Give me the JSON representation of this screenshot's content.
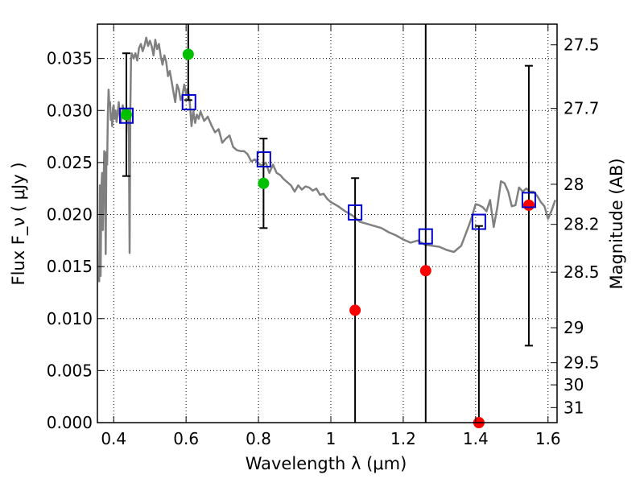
{
  "chart_data": {
    "type": "scatter",
    "xlabel": "Wavelength  λ (μm)",
    "ylabel": "Flux  F_ν  ( μJy )",
    "y2label": "Magnitude (AB)",
    "xlim": [
      0.355,
      1.625
    ],
    "ylim": [
      0.0,
      0.0383
    ],
    "grid": true,
    "x_ticks": [
      {
        "value": 0.4,
        "label": "0.4"
      },
      {
        "value": 0.6,
        "label": "0.6"
      },
      {
        "value": 0.8,
        "label": "0.8"
      },
      {
        "value": 1.0,
        "label": "1"
      },
      {
        "value": 1.2,
        "label": "1.2"
      },
      {
        "value": 1.4,
        "label": "1.4"
      },
      {
        "value": 1.6,
        "label": "1.6"
      }
    ],
    "y_ticks": [
      {
        "value": 0.0,
        "label": "0.000"
      },
      {
        "value": 0.005,
        "label": "0.005"
      },
      {
        "value": 0.01,
        "label": "0.010"
      },
      {
        "value": 0.015,
        "label": "0.015"
      },
      {
        "value": 0.02,
        "label": "0.020"
      },
      {
        "value": 0.025,
        "label": "0.025"
      },
      {
        "value": 0.03,
        "label": "0.030"
      },
      {
        "value": 0.035,
        "label": "0.035"
      }
    ],
    "mag_ticks": [
      {
        "value": 27.5,
        "label": "27.5"
      },
      {
        "value": 27.7,
        "label": "27.7"
      },
      {
        "value": 28.0,
        "label": "28"
      },
      {
        "value": 28.2,
        "label": "28.2"
      },
      {
        "value": 28.5,
        "label": "28.5"
      },
      {
        "value": 29.0,
        "label": "29"
      },
      {
        "value": 29.5,
        "label": "29.5"
      },
      {
        "value": 30.0,
        "label": "30"
      },
      {
        "value": 31.0,
        "label": "31"
      }
    ],
    "colors": {
      "model": "#808080",
      "green": "#00c000",
      "red": "#ff0000",
      "square": "#0000cc",
      "errorbar": "#000000"
    },
    "model_spectrum": {
      "x": [
        0.36,
        0.362,
        0.364,
        0.366,
        0.368,
        0.37,
        0.372,
        0.374,
        0.376,
        0.378,
        0.38,
        0.382,
        0.384,
        0.386,
        0.388,
        0.39,
        0.392,
        0.394,
        0.396,
        0.398,
        0.4,
        0.402,
        0.405,
        0.408,
        0.411,
        0.414,
        0.417,
        0.42,
        0.425,
        0.43,
        0.435,
        0.44,
        0.442,
        0.444,
        0.446,
        0.448,
        0.45,
        0.455,
        0.46,
        0.465,
        0.47,
        0.475,
        0.48,
        0.485,
        0.49,
        0.495,
        0.5,
        0.505,
        0.51,
        0.515,
        0.52,
        0.525,
        0.53,
        0.535,
        0.54,
        0.545,
        0.55,
        0.555,
        0.56,
        0.565,
        0.57,
        0.575,
        0.58,
        0.585,
        0.59,
        0.595,
        0.6,
        0.605,
        0.61,
        0.615,
        0.62,
        0.625,
        0.63,
        0.635,
        0.64,
        0.65,
        0.66,
        0.67,
        0.68,
        0.69,
        0.7,
        0.71,
        0.72,
        0.73,
        0.74,
        0.75,
        0.76,
        0.77,
        0.78,
        0.79,
        0.8,
        0.81,
        0.82,
        0.83,
        0.84,
        0.85,
        0.86,
        0.87,
        0.88,
        0.89,
        0.9,
        0.91,
        0.92,
        0.93,
        0.94,
        0.95,
        0.96,
        0.97,
        0.98,
        0.99,
        1.0,
        1.02,
        1.04,
        1.06,
        1.08,
        1.1,
        1.12,
        1.14,
        1.16,
        1.18,
        1.2,
        1.22,
        1.24,
        1.26,
        1.28,
        1.3,
        1.32,
        1.34,
        1.36,
        1.38,
        1.39,
        1.4,
        1.41,
        1.42,
        1.43,
        1.44,
        1.45,
        1.46,
        1.47,
        1.48,
        1.49,
        1.5,
        1.51,
        1.52,
        1.53,
        1.54,
        1.55,
        1.56,
        1.57,
        1.58,
        1.59,
        1.6,
        1.61,
        1.62
      ],
      "y": [
        0.0135,
        0.0228,
        0.0141,
        0.0225,
        0.024,
        0.0185,
        0.0223,
        0.0261,
        0.0252,
        0.0162,
        0.026,
        0.0248,
        0.0297,
        0.032,
        0.0305,
        0.0308,
        0.0291,
        0.0297,
        0.0285,
        0.0302,
        0.0305,
        0.0292,
        0.03,
        0.0289,
        0.0297,
        0.0308,
        0.0294,
        0.0288,
        0.0305,
        0.0292,
        0.0294,
        0.0293,
        0.0275,
        0.0163,
        0.03,
        0.035,
        0.0355,
        0.035,
        0.0355,
        0.0348,
        0.036,
        0.0364,
        0.0357,
        0.0362,
        0.037,
        0.0362,
        0.0367,
        0.0362,
        0.0353,
        0.0368,
        0.0359,
        0.0364,
        0.0352,
        0.0344,
        0.0353,
        0.0347,
        0.0333,
        0.0338,
        0.0328,
        0.0318,
        0.0308,
        0.0325,
        0.032,
        0.031,
        0.0315,
        0.0325,
        0.0316,
        0.0321,
        0.0309,
        0.0285,
        0.03,
        0.0288,
        0.0296,
        0.0292,
        0.0299,
        0.029,
        0.0294,
        0.0286,
        0.0279,
        0.0282,
        0.0269,
        0.0273,
        0.0276,
        0.0265,
        0.0262,
        0.0261,
        0.0261,
        0.0258,
        0.0251,
        0.0253,
        0.0249,
        0.0247,
        0.025,
        0.024,
        0.0248,
        0.024,
        0.0238,
        0.0234,
        0.0231,
        0.0228,
        0.0222,
        0.0228,
        0.0224,
        0.0227,
        0.0226,
        0.0223,
        0.0225,
        0.0219,
        0.022,
        0.0215,
        0.0212,
        0.0208,
        0.0203,
        0.0199,
        0.0193,
        0.0191,
        0.0189,
        0.0187,
        0.0183,
        0.018,
        0.0176,
        0.0173,
        0.0175,
        0.0171,
        0.017,
        0.0169,
        0.0166,
        0.0164,
        0.017,
        0.0188,
        0.0198,
        0.021,
        0.0209,
        0.0207,
        0.0203,
        0.0214,
        0.0188,
        0.0207,
        0.0232,
        0.023,
        0.0222,
        0.0208,
        0.0209,
        0.0226,
        0.0222,
        0.0225,
        0.0222,
        0.0222,
        0.0218,
        0.0212,
        0.0208,
        0.0196,
        0.0204,
        0.0214
      ]
    },
    "points": [
      {
        "x": 0.435,
        "y": 0.0296,
        "color": "green",
        "yerr_low": 0.0237,
        "yerr_high": 0.0355
      },
      {
        "x": 0.606,
        "y": 0.0354,
        "color": "green",
        "yerr_low": 0.031,
        "yerr_high": 0.039
      },
      {
        "x": 0.814,
        "y": 0.023,
        "color": "green",
        "yerr_low": 0.0187,
        "yerr_high": 0.0273
      },
      {
        "x": 1.067,
        "y": 0.0108,
        "color": "red",
        "yerr_low": 0.0,
        "yerr_high": 0.0235
      },
      {
        "x": 1.262,
        "y": 0.0146,
        "color": "red",
        "yerr_low": 0.0,
        "yerr_high": 0.039
      },
      {
        "x": 1.409,
        "y": 0.0,
        "color": "red",
        "yerr_low": 0.0,
        "yerr_high": 0.0189
      },
      {
        "x": 1.547,
        "y": 0.0209,
        "color": "red",
        "yerr_low": 0.0074,
        "yerr_high": 0.0343
      }
    ],
    "model_photometry": [
      {
        "x": 0.435,
        "y": 0.0295
      },
      {
        "x": 0.608,
        "y": 0.0308
      },
      {
        "x": 0.815,
        "y": 0.0253
      },
      {
        "x": 1.067,
        "y": 0.0202
      },
      {
        "x": 1.262,
        "y": 0.0179
      },
      {
        "x": 1.409,
        "y": 0.0193
      },
      {
        "x": 1.547,
        "y": 0.0214
      }
    ]
  }
}
